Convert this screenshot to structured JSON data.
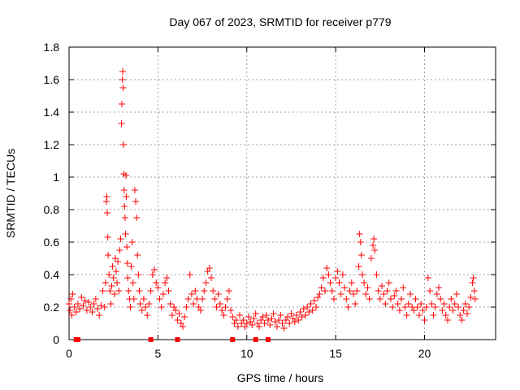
{
  "chart_data": {
    "type": "scatter",
    "title": "Day 067 of 2023, SRMTID for receiver p779",
    "xlabel": "GPS time / hours",
    "ylabel": "SRMTID / TECUs",
    "xlim": [
      0,
      24
    ],
    "ylim": [
      0,
      1.8
    ],
    "xticks": [
      0,
      5,
      10,
      15,
      20
    ],
    "xtick_labels": [
      "0",
      "5",
      "10",
      "15",
      "20"
    ],
    "yticks": [
      0,
      0.2,
      0.4,
      0.6,
      0.8,
      1.0,
      1.2,
      1.4,
      1.6,
      1.8
    ],
    "ytick_labels": [
      "0",
      "0.2",
      "0.4",
      "0.6",
      "0.8",
      "1",
      "1.2",
      "1.4",
      "1.6",
      "1.8"
    ],
    "grid": true,
    "marker": "+",
    "color": "#ff0000",
    "series": [
      {
        "name": "p779",
        "points": [
          [
            0.0,
            0.22
          ],
          [
            0.05,
            0.18
          ],
          [
            0.1,
            0.25
          ],
          [
            0.15,
            0.15
          ],
          [
            0.2,
            0.28
          ],
          [
            0.3,
            0.2
          ],
          [
            0.4,
            0.17
          ],
          [
            0.5,
            0.22
          ],
          [
            0.6,
            0.19
          ],
          [
            0.7,
            0.26
          ],
          [
            0.8,
            0.21
          ],
          [
            0.9,
            0.24
          ],
          [
            1.0,
            0.18
          ],
          [
            1.1,
            0.23
          ],
          [
            1.2,
            0.2
          ],
          [
            1.3,
            0.17
          ],
          [
            1.4,
            0.22
          ],
          [
            1.5,
            0.25
          ],
          [
            1.6,
            0.19
          ],
          [
            1.7,
            0.15
          ],
          [
            1.8,
            0.21
          ],
          [
            1.9,
            0.3
          ],
          [
            2.0,
            0.2
          ],
          [
            2.05,
            0.35
          ],
          [
            2.1,
            0.85
          ],
          [
            2.12,
            0.88
          ],
          [
            2.15,
            0.78
          ],
          [
            2.18,
            0.63
          ],
          [
            2.2,
            0.52
          ],
          [
            2.25,
            0.4
          ],
          [
            2.3,
            0.3
          ],
          [
            2.35,
            0.22
          ],
          [
            2.4,
            0.33
          ],
          [
            2.45,
            0.45
          ],
          [
            2.5,
            0.38
          ],
          [
            2.55,
            0.28
          ],
          [
            2.6,
            0.5
          ],
          [
            2.65,
            0.42
          ],
          [
            2.7,
            0.35
          ],
          [
            2.75,
            0.48
          ],
          [
            2.8,
            0.3
          ],
          [
            2.85,
            0.55
          ],
          [
            2.9,
            0.62
          ],
          [
            2.95,
            1.33
          ],
          [
            2.97,
            1.45
          ],
          [
            3.0,
            1.6
          ],
          [
            3.02,
            1.65
          ],
          [
            3.04,
            1.55
          ],
          [
            3.06,
            1.2
          ],
          [
            3.08,
            1.02
          ],
          [
            3.1,
            0.92
          ],
          [
            3.12,
            0.82
          ],
          [
            3.15,
            0.75
          ],
          [
            3.18,
            0.65
          ],
          [
            3.2,
            1.01
          ],
          [
            3.22,
            0.88
          ],
          [
            3.25,
            0.57
          ],
          [
            3.28,
            0.47
          ],
          [
            3.3,
            0.38
          ],
          [
            3.35,
            0.3
          ],
          [
            3.4,
            0.25
          ],
          [
            3.45,
            0.2
          ],
          [
            3.5,
            0.45
          ],
          [
            3.55,
            0.6
          ],
          [
            3.6,
            0.35
          ],
          [
            3.65,
            0.25
          ],
          [
            3.7,
            0.92
          ],
          [
            3.75,
            0.85
          ],
          [
            3.8,
            0.75
          ],
          [
            3.85,
            0.52
          ],
          [
            3.9,
            0.4
          ],
          [
            3.95,
            0.3
          ],
          [
            4.0,
            0.22
          ],
          [
            4.1,
            0.18
          ],
          [
            4.2,
            0.25
          ],
          [
            4.3,
            0.2
          ],
          [
            4.4,
            0.15
          ],
          [
            4.5,
            0.22
          ],
          [
            4.6,
            0.3
          ],
          [
            4.7,
            0.4
          ],
          [
            4.8,
            0.43
          ],
          [
            4.9,
            0.35
          ],
          [
            5.0,
            0.32
          ],
          [
            5.1,
            0.25
          ],
          [
            5.2,
            0.2
          ],
          [
            5.3,
            0.28
          ],
          [
            5.4,
            0.35
          ],
          [
            5.5,
            0.38
          ],
          [
            5.6,
            0.3
          ],
          [
            5.7,
            0.22
          ],
          [
            5.8,
            0.15
          ],
          [
            5.9,
            0.2
          ],
          [
            6.0,
            0.18
          ],
          [
            6.1,
            0.12
          ],
          [
            6.2,
            0.16
          ],
          [
            6.3,
            0.1
          ],
          [
            6.4,
            0.08
          ],
          [
            6.5,
            0.14
          ],
          [
            6.6,
            0.2
          ],
          [
            6.7,
            0.25
          ],
          [
            6.8,
            0.4
          ],
          [
            6.9,
            0.28
          ],
          [
            7.0,
            0.22
          ],
          [
            7.1,
            0.3
          ],
          [
            7.2,
            0.25
          ],
          [
            7.3,
            0.2
          ],
          [
            7.4,
            0.18
          ],
          [
            7.5,
            0.25
          ],
          [
            7.6,
            0.3
          ],
          [
            7.7,
            0.35
          ],
          [
            7.8,
            0.42
          ],
          [
            7.9,
            0.44
          ],
          [
            8.0,
            0.38
          ],
          [
            8.1,
            0.3
          ],
          [
            8.2,
            0.25
          ],
          [
            8.3,
            0.2
          ],
          [
            8.4,
            0.28
          ],
          [
            8.5,
            0.22
          ],
          [
            8.6,
            0.18
          ],
          [
            8.7,
            0.15
          ],
          [
            8.8,
            0.2
          ],
          [
            8.9,
            0.25
          ],
          [
            9.0,
            0.3
          ],
          [
            9.1,
            0.18
          ],
          [
            9.2,
            0.14
          ],
          [
            9.3,
            0.1
          ],
          [
            9.4,
            0.12
          ],
          [
            9.5,
            0.08
          ],
          [
            9.6,
            0.15
          ],
          [
            9.7,
            0.1
          ],
          [
            9.8,
            0.12
          ],
          [
            9.9,
            0.08
          ],
          [
            10.0,
            0.1
          ],
          [
            10.1,
            0.14
          ],
          [
            10.2,
            0.11
          ],
          [
            10.3,
            0.09
          ],
          [
            10.4,
            0.13
          ],
          [
            10.5,
            0.16
          ],
          [
            10.6,
            0.1
          ],
          [
            10.7,
            0.08
          ],
          [
            10.8,
            0.12
          ],
          [
            10.9,
            0.14
          ],
          [
            11.0,
            0.1
          ],
          [
            11.1,
            0.15
          ],
          [
            11.2,
            0.12
          ],
          [
            11.3,
            0.09
          ],
          [
            11.4,
            0.13
          ],
          [
            11.5,
            0.16
          ],
          [
            11.6,
            0.11
          ],
          [
            11.7,
            0.08
          ],
          [
            11.8,
            0.12
          ],
          [
            11.9,
            0.15
          ],
          [
            12.0,
            0.1
          ],
          [
            12.1,
            0.07
          ],
          [
            12.2,
            0.12
          ],
          [
            12.3,
            0.14
          ],
          [
            12.4,
            0.1
          ],
          [
            12.5,
            0.16
          ],
          [
            12.6,
            0.13
          ],
          [
            12.7,
            0.11
          ],
          [
            12.8,
            0.15
          ],
          [
            12.9,
            0.12
          ],
          [
            13.0,
            0.17
          ],
          [
            13.1,
            0.14
          ],
          [
            13.2,
            0.19
          ],
          [
            13.3,
            0.15
          ],
          [
            13.4,
            0.2
          ],
          [
            13.5,
            0.17
          ],
          [
            13.6,
            0.22
          ],
          [
            13.7,
            0.18
          ],
          [
            13.8,
            0.24
          ],
          [
            13.9,
            0.2
          ],
          [
            14.0,
            0.26
          ],
          [
            14.1,
            0.28
          ],
          [
            14.2,
            0.32
          ],
          [
            14.3,
            0.38
          ],
          [
            14.4,
            0.3
          ],
          [
            14.5,
            0.44
          ],
          [
            14.6,
            0.4
          ],
          [
            14.7,
            0.35
          ],
          [
            14.8,
            0.3
          ],
          [
            14.9,
            0.25
          ],
          [
            15.0,
            0.38
          ],
          [
            15.1,
            0.42
          ],
          [
            15.2,
            0.35
          ],
          [
            15.3,
            0.28
          ],
          [
            15.4,
            0.4
          ],
          [
            15.5,
            0.32
          ],
          [
            15.6,
            0.25
          ],
          [
            15.7,
            0.2
          ],
          [
            15.8,
            0.3
          ],
          [
            15.9,
            0.35
          ],
          [
            16.0,
            0.28
          ],
          [
            16.1,
            0.22
          ],
          [
            16.2,
            0.3
          ],
          [
            16.3,
            0.45
          ],
          [
            16.35,
            0.65
          ],
          [
            16.4,
            0.6
          ],
          [
            16.45,
            0.52
          ],
          [
            16.5,
            0.4
          ],
          [
            16.6,
            0.35
          ],
          [
            16.7,
            0.28
          ],
          [
            16.8,
            0.32
          ],
          [
            16.9,
            0.25
          ],
          [
            17.0,
            0.5
          ],
          [
            17.1,
            0.58
          ],
          [
            17.15,
            0.62
          ],
          [
            17.2,
            0.55
          ],
          [
            17.3,
            0.4
          ],
          [
            17.4,
            0.3
          ],
          [
            17.5,
            0.25
          ],
          [
            17.6,
            0.33
          ],
          [
            17.7,
            0.28
          ],
          [
            17.8,
            0.22
          ],
          [
            17.9,
            0.3
          ],
          [
            18.0,
            0.35
          ],
          [
            18.1,
            0.25
          ],
          [
            18.2,
            0.2
          ],
          [
            18.3,
            0.27
          ],
          [
            18.4,
            0.3
          ],
          [
            18.5,
            0.22
          ],
          [
            18.6,
            0.18
          ],
          [
            18.7,
            0.25
          ],
          [
            18.8,
            0.32
          ],
          [
            18.9,
            0.2
          ],
          [
            19.0,
            0.15
          ],
          [
            19.1,
            0.22
          ],
          [
            19.2,
            0.28
          ],
          [
            19.3,
            0.2
          ],
          [
            19.4,
            0.18
          ],
          [
            19.5,
            0.25
          ],
          [
            19.6,
            0.2
          ],
          [
            19.7,
            0.15
          ],
          [
            19.8,
            0.22
          ],
          [
            19.9,
            0.18
          ],
          [
            20.0,
            0.12
          ],
          [
            20.1,
            0.2
          ],
          [
            20.2,
            0.38
          ],
          [
            20.3,
            0.3
          ],
          [
            20.4,
            0.22
          ],
          [
            20.5,
            0.15
          ],
          [
            20.6,
            0.2
          ],
          [
            20.7,
            0.28
          ],
          [
            20.8,
            0.32
          ],
          [
            20.9,
            0.25
          ],
          [
            21.0,
            0.18
          ],
          [
            21.1,
            0.22
          ],
          [
            21.2,
            0.15
          ],
          [
            21.3,
            0.12
          ],
          [
            21.4,
            0.2
          ],
          [
            21.5,
            0.25
          ],
          [
            21.6,
            0.18
          ],
          [
            21.7,
            0.22
          ],
          [
            21.8,
            0.28
          ],
          [
            21.9,
            0.2
          ],
          [
            22.0,
            0.15
          ],
          [
            22.1,
            0.12
          ],
          [
            22.2,
            0.18
          ],
          [
            22.3,
            0.22
          ],
          [
            22.4,
            0.16
          ],
          [
            22.5,
            0.2
          ],
          [
            22.6,
            0.26
          ],
          [
            22.7,
            0.35
          ],
          [
            22.75,
            0.38
          ],
          [
            22.8,
            0.3
          ],
          [
            22.85,
            0.25
          ]
        ]
      }
    ],
    "zero_points": [
      0.4,
      0.5,
      4.6,
      6.1,
      9.2,
      10.5,
      11.2
    ]
  }
}
